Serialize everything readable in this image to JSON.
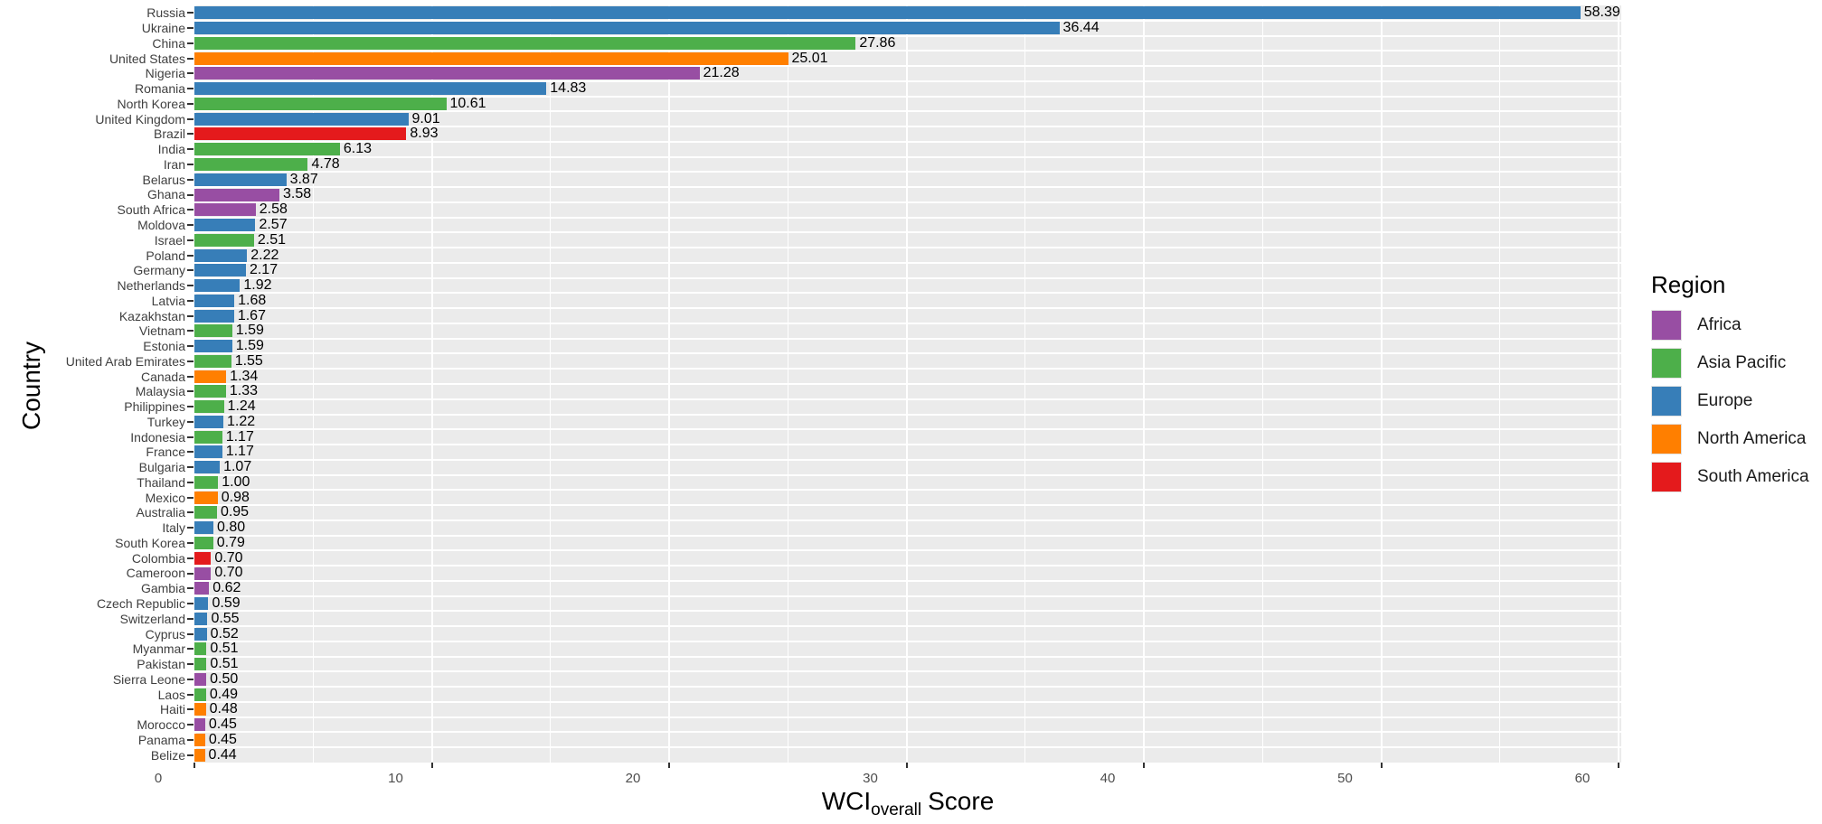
{
  "colors": {
    "panel_background": "#EBEBEB",
    "gridline": "#FFFFFF",
    "axis_text": "#4D4D4D",
    "tick_mark": "#333333",
    "value_label": "#000000"
  },
  "chart_data": {
    "type": "bar",
    "orientation": "horizontal",
    "title": "",
    "xlabel": {
      "prefix": "WCI",
      "subscript": "overall",
      "suffix": "Score"
    },
    "ylabel": "Country",
    "xlim": [
      0,
      60
    ],
    "x_ticks": [
      0,
      10,
      20,
      30,
      40,
      50,
      60
    ],
    "x_minor_ticks": [
      5,
      15,
      25,
      35,
      45,
      55
    ],
    "grid": "white major and minor gridlines on gray panel",
    "legend": {
      "title": "Region",
      "position": "right",
      "items": [
        {
          "label": "Africa",
          "color": "#984EA3"
        },
        {
          "label": "Asia Pacific",
          "color": "#4DAF4A"
        },
        {
          "label": "Europe",
          "color": "#377EB8"
        },
        {
          "label": "North America",
          "color": "#FF7F00"
        },
        {
          "label": "South America",
          "color": "#E41A1C"
        }
      ]
    },
    "region_colors": {
      "Africa": "#984EA3",
      "Asia Pacific": "#4DAF4A",
      "Europe": "#377EB8",
      "North America": "#FF7F00",
      "South America": "#E41A1C"
    },
    "bars": [
      {
        "country": "Russia",
        "value": 58.39,
        "label": "58.39",
        "region": "Europe"
      },
      {
        "country": "Ukraine",
        "value": 36.44,
        "label": "36.44",
        "region": "Europe"
      },
      {
        "country": "China",
        "value": 27.86,
        "label": "27.86",
        "region": "Asia Pacific"
      },
      {
        "country": "United States",
        "value": 25.01,
        "label": "25.01",
        "region": "North America"
      },
      {
        "country": "Nigeria",
        "value": 21.28,
        "label": "21.28",
        "region": "Africa"
      },
      {
        "country": "Romania",
        "value": 14.83,
        "label": "14.83",
        "region": "Europe"
      },
      {
        "country": "North Korea",
        "value": 10.61,
        "label": "10.61",
        "region": "Asia Pacific"
      },
      {
        "country": "United Kingdom",
        "value": 9.01,
        "label": "9.01",
        "region": "Europe"
      },
      {
        "country": "Brazil",
        "value": 8.93,
        "label": "8.93",
        "region": "South America"
      },
      {
        "country": "India",
        "value": 6.13,
        "label": "6.13",
        "region": "Asia Pacific"
      },
      {
        "country": "Iran",
        "value": 4.78,
        "label": "4.78",
        "region": "Asia Pacific"
      },
      {
        "country": "Belarus",
        "value": 3.87,
        "label": "3.87",
        "region": "Europe"
      },
      {
        "country": "Ghana",
        "value": 3.58,
        "label": "3.58",
        "region": "Africa"
      },
      {
        "country": "South Africa",
        "value": 2.58,
        "label": "2.58",
        "region": "Africa"
      },
      {
        "country": "Moldova",
        "value": 2.57,
        "label": "2.57",
        "region": "Europe"
      },
      {
        "country": "Israel",
        "value": 2.51,
        "label": "2.51",
        "region": "Asia Pacific"
      },
      {
        "country": "Poland",
        "value": 2.22,
        "label": "2.22",
        "region": "Europe"
      },
      {
        "country": "Germany",
        "value": 2.17,
        "label": "2.17",
        "region": "Europe"
      },
      {
        "country": "Netherlands",
        "value": 1.92,
        "label": "1.92",
        "region": "Europe"
      },
      {
        "country": "Latvia",
        "value": 1.68,
        "label": "1.68",
        "region": "Europe"
      },
      {
        "country": "Kazakhstan",
        "value": 1.67,
        "label": "1.67",
        "region": "Europe"
      },
      {
        "country": "Vietnam",
        "value": 1.59,
        "label": "1.59",
        "region": "Asia Pacific"
      },
      {
        "country": "Estonia",
        "value": 1.59,
        "label": "1.59",
        "region": "Europe"
      },
      {
        "country": "United Arab Emirates",
        "value": 1.55,
        "label": "1.55",
        "region": "Asia Pacific"
      },
      {
        "country": "Canada",
        "value": 1.34,
        "label": "1.34",
        "region": "North America"
      },
      {
        "country": "Malaysia",
        "value": 1.33,
        "label": "1.33",
        "region": "Asia Pacific"
      },
      {
        "country": "Philippines",
        "value": 1.24,
        "label": "1.24",
        "region": "Asia Pacific"
      },
      {
        "country": "Turkey",
        "value": 1.22,
        "label": "1.22",
        "region": "Europe"
      },
      {
        "country": "Indonesia",
        "value": 1.17,
        "label": "1.17",
        "region": "Asia Pacific"
      },
      {
        "country": "France",
        "value": 1.17,
        "label": "1.17",
        "region": "Europe"
      },
      {
        "country": "Bulgaria",
        "value": 1.07,
        "label": "1.07",
        "region": "Europe"
      },
      {
        "country": "Thailand",
        "value": 1.0,
        "label": "1.00",
        "region": "Asia Pacific"
      },
      {
        "country": "Mexico",
        "value": 0.98,
        "label": "0.98",
        "region": "North America"
      },
      {
        "country": "Australia",
        "value": 0.95,
        "label": "0.95",
        "region": "Asia Pacific"
      },
      {
        "country": "Italy",
        "value": 0.8,
        "label": "0.80",
        "region": "Europe"
      },
      {
        "country": "South Korea",
        "value": 0.79,
        "label": "0.79",
        "region": "Asia Pacific"
      },
      {
        "country": "Colombia",
        "value": 0.7,
        "label": "0.70",
        "region": "South America"
      },
      {
        "country": "Cameroon",
        "value": 0.7,
        "label": "0.70",
        "region": "Africa"
      },
      {
        "country": "Gambia",
        "value": 0.62,
        "label": "0.62",
        "region": "Africa"
      },
      {
        "country": "Czech Republic",
        "value": 0.59,
        "label": "0.59",
        "region": "Europe"
      },
      {
        "country": "Switzerland",
        "value": 0.55,
        "label": "0.55",
        "region": "Europe"
      },
      {
        "country": "Cyprus",
        "value": 0.52,
        "label": "0.52",
        "region": "Europe"
      },
      {
        "country": "Myanmar",
        "value": 0.51,
        "label": "0.51",
        "region": "Asia Pacific"
      },
      {
        "country": "Pakistan",
        "value": 0.51,
        "label": "0.51",
        "region": "Asia Pacific"
      },
      {
        "country": "Sierra Leone",
        "value": 0.5,
        "label": "0.50",
        "region": "Africa"
      },
      {
        "country": "Laos",
        "value": 0.49,
        "label": "0.49",
        "region": "Asia Pacific"
      },
      {
        "country": "Haiti",
        "value": 0.48,
        "label": "0.48",
        "region": "North America"
      },
      {
        "country": "Morocco",
        "value": 0.45,
        "label": "0.45",
        "region": "Africa"
      },
      {
        "country": "Panama",
        "value": 0.45,
        "label": "0.45",
        "region": "North America"
      },
      {
        "country": "Belize",
        "value": 0.44,
        "label": "0.44",
        "region": "North America"
      }
    ]
  }
}
